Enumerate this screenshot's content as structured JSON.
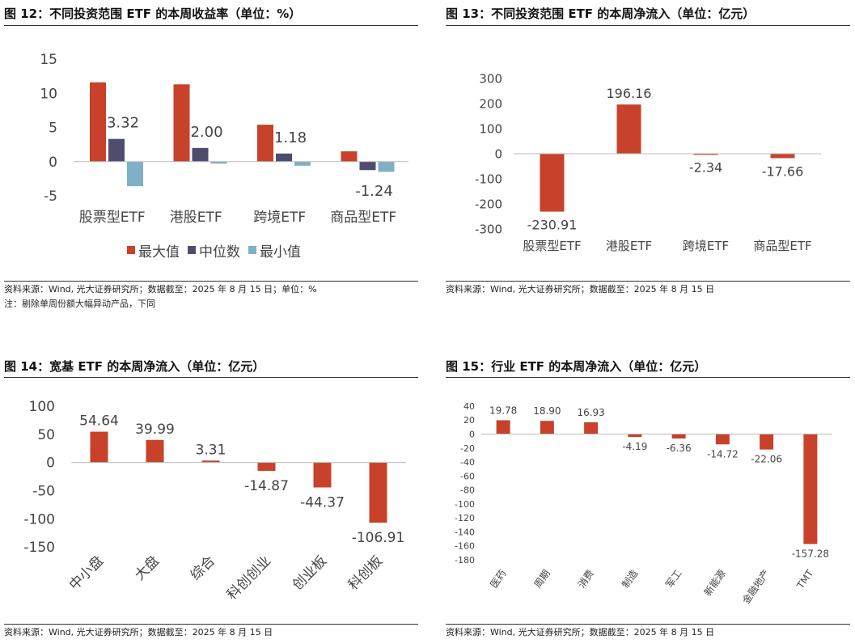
{
  "colors": {
    "max": "#c8412b",
    "median": "#4f4d6e",
    "min": "#7fb0c8",
    "bar": "#c8412b",
    "axis": "#bbbbbb",
    "text": "#444444"
  },
  "fig12": {
    "title": "图 12：不同投资范围 ETF 的本周收益率（单位：%）",
    "source": "资料来源：Wind, 光大证券研究所；数据截至：2025 年 8 月 15 日；单位：%",
    "note": "注：剔除单周份额大幅异动产品，下同"
  },
  "fig13": {
    "title": "图 13：不同投资范围 ETF 的本周净流入（单位：亿元）",
    "source": "资料来源：Wind, 光大证券研究所；数据截至：2025 年 8 月 15 日"
  },
  "fig14": {
    "title": "图 14：宽基 ETF 的本周净流入（单位：亿元）",
    "source": "资料来源：Wind, 光大证券研究所；数据截至：2025 年 8 月 15 日"
  },
  "fig15": {
    "title": "图 15：行业 ETF 的本周净流入（单位：亿元）",
    "source": "资料来源：Wind, 光大证券研究所；数据截至：2025 年 8 月 15 日"
  },
  "chart_data": [
    {
      "id": "fig12",
      "type": "bar",
      "title": "不同投资范围 ETF 的本周收益率（单位：%）",
      "categories": [
        "股票型ETF",
        "港股ETF",
        "跨境ETF",
        "商品型ETF"
      ],
      "series": [
        {
          "name": "最大值",
          "values": [
            11.6,
            11.3,
            5.4,
            1.5
          ]
        },
        {
          "name": "中位数",
          "values": [
            3.32,
            2.0,
            1.18,
            -1.24
          ]
        },
        {
          "name": "最小值",
          "values": [
            -3.6,
            -0.3,
            -0.6,
            -1.5
          ]
        }
      ],
      "data_labels": {
        "series": "中位数",
        "texts": [
          "3.32",
          "2.00",
          "1.18",
          "-1.24"
        ]
      },
      "ylim": [
        -5,
        15
      ],
      "yticks": [
        15,
        10,
        5,
        0,
        -5
      ],
      "ytick_labels": [
        "15",
        "10",
        "5",
        "0",
        "-5"
      ],
      "legend": "bottom"
    },
    {
      "id": "fig13",
      "type": "bar",
      "title": "不同投资范围 ETF 的本周净流入（单位：亿元）",
      "categories": [
        "股票型ETF",
        "港股ETF",
        "跨境ETF",
        "商品型ETF"
      ],
      "values": [
        -230.91,
        196.16,
        -2.34,
        -17.66
      ],
      "labels": [
        "-230.91",
        "196.16",
        "-2.34",
        "-17.66"
      ],
      "ylim": [
        -300,
        300
      ],
      "yticks": [
        300,
        200,
        100,
        0,
        -100,
        -200,
        -300
      ],
      "ytick_labels": [
        "300",
        "200",
        "100",
        "0",
        "-100",
        "-200",
        "-300"
      ]
    },
    {
      "id": "fig14",
      "type": "bar",
      "title": "宽基 ETF 的本周净流入（单位：亿元）",
      "categories": [
        "中小盘",
        "大盘",
        "综合",
        "科创创业",
        "创业板",
        "科创板"
      ],
      "values": [
        54.64,
        39.99,
        3.31,
        -14.87,
        -44.37,
        -106.91
      ],
      "labels": [
        "54.64",
        "39.99",
        "3.31",
        "-14.87",
        "-44.37",
        "-106.91"
      ],
      "ylim": [
        -150,
        100
      ],
      "yticks": [
        100,
        50,
        0,
        -50,
        -100,
        -150
      ],
      "ytick_labels": [
        "100",
        "50",
        "0",
        "-50",
        "-100",
        "-150"
      ]
    },
    {
      "id": "fig15",
      "type": "bar",
      "title": "行业 ETF 的本周净流入（单位：亿元）",
      "categories": [
        "医药",
        "周期",
        "消费",
        "制造",
        "军工",
        "新能源",
        "金融地产",
        "TMT"
      ],
      "values": [
        19.78,
        18.9,
        16.93,
        -4.19,
        -6.36,
        -14.72,
        -22.06,
        -157.28
      ],
      "labels": [
        "19.78",
        "18.90",
        "16.93",
        "-4.19",
        "-6.36",
        "-14.72",
        "-22.06",
        "-157.28"
      ],
      "ylim": [
        -180,
        40
      ],
      "yticks": [
        40,
        20,
        0,
        -20,
        -40,
        -60,
        -80,
        -100,
        -120,
        -140,
        -160,
        -180
      ],
      "ytick_labels": [
        "40",
        "20",
        "0",
        "-20",
        "-40",
        "-60",
        "-80",
        "-100",
        "-120",
        "-140",
        "-160",
        "-180"
      ]
    }
  ]
}
